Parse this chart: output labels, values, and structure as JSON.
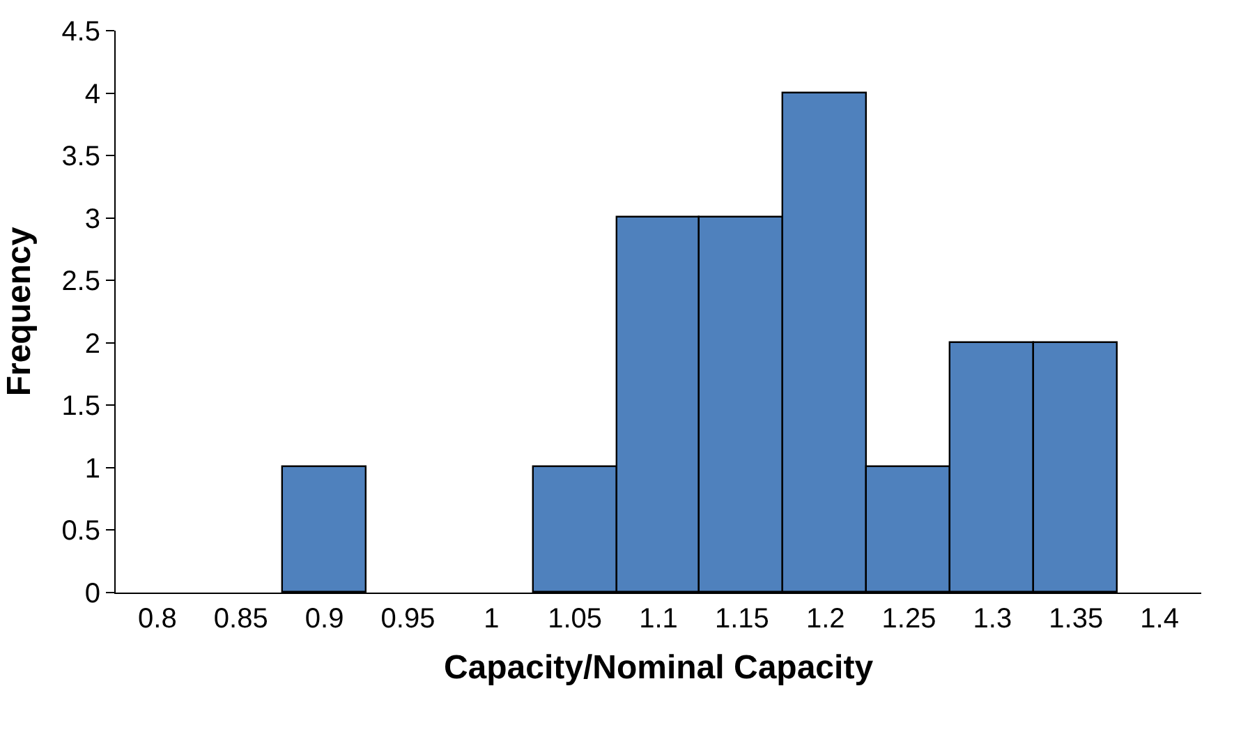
{
  "chart_data": {
    "type": "bar",
    "xlabel": "Capacity/Nominal Capacity",
    "ylabel": "Frequency",
    "categories": [
      "0.8",
      "0.85",
      "0.9",
      "0.95",
      "1",
      "1.05",
      "1.1",
      "1.15",
      "1.2",
      "1.25",
      "1.3",
      "1.35",
      "1.4"
    ],
    "values": [
      0,
      0,
      1,
      0,
      0,
      1,
      3,
      3,
      4,
      1,
      2,
      2,
      0
    ],
    "color": "#4f81bd",
    "ylim": [
      0,
      4.5
    ],
    "yticks": [
      0,
      0.5,
      1,
      1.5,
      2,
      2.5,
      3,
      3.5,
      4,
      4.5
    ]
  }
}
